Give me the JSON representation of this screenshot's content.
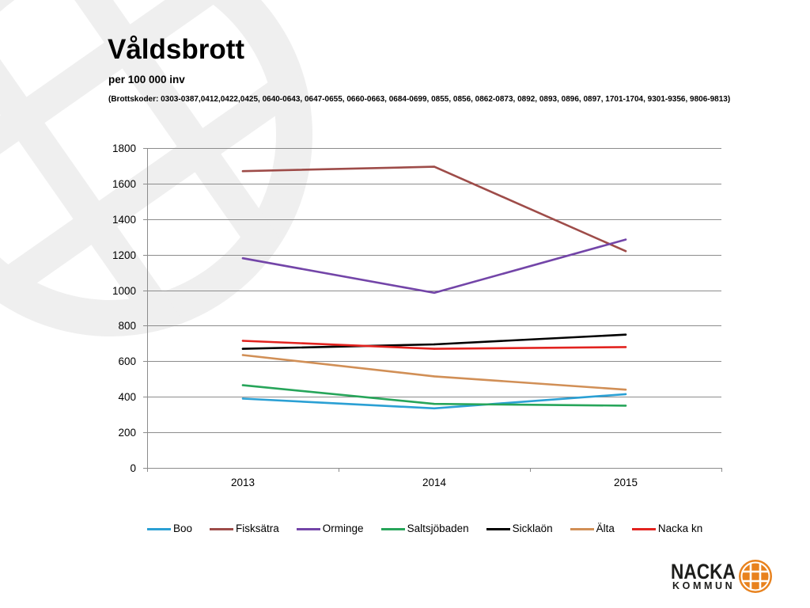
{
  "chart_data": {
    "type": "line",
    "title": "Våldsbrott",
    "subtitle": "per 100 000 inv",
    "annotation": "(Brottskoder: 0303-0387,0412,0422,0425, 0640-0643, 0647-0655, 0660-0663, 0684-0699, 0855, 0856, 0862-0873, 0892, 0893, 0896, 0897, 1701-1704, 9301-9356, 9806-9813)",
    "categories": [
      "2013",
      "2014",
      "2015"
    ],
    "ylim": [
      0,
      1800
    ],
    "yticks": [
      0,
      200,
      400,
      600,
      800,
      1000,
      1200,
      1400,
      1600,
      1800
    ],
    "grid": true,
    "legend": "bottom",
    "series": [
      {
        "name": "Boo",
        "color": "#2ba0d4",
        "values": [
          390,
          335,
          415
        ]
      },
      {
        "name": "Fisksätra",
        "color": "#9e4c49",
        "values": [
          1670,
          1695,
          1220
        ]
      },
      {
        "name": "Orminge",
        "color": "#7345a8",
        "values": [
          1180,
          985,
          1285
        ]
      },
      {
        "name": "Saltsjöbaden",
        "color": "#27a55a",
        "values": [
          465,
          360,
          350
        ]
      },
      {
        "name": "Sicklaön",
        "color": "#000000",
        "values": [
          670,
          695,
          750
        ]
      },
      {
        "name": "Älta",
        "color": "#d18f56",
        "values": [
          635,
          515,
          440
        ]
      },
      {
        "name": "Nacka kn",
        "color": "#e2231f",
        "values": [
          715,
          670,
          680
        ]
      }
    ]
  },
  "logo": {
    "name": "NACKA",
    "sub": "KOMMUN"
  }
}
